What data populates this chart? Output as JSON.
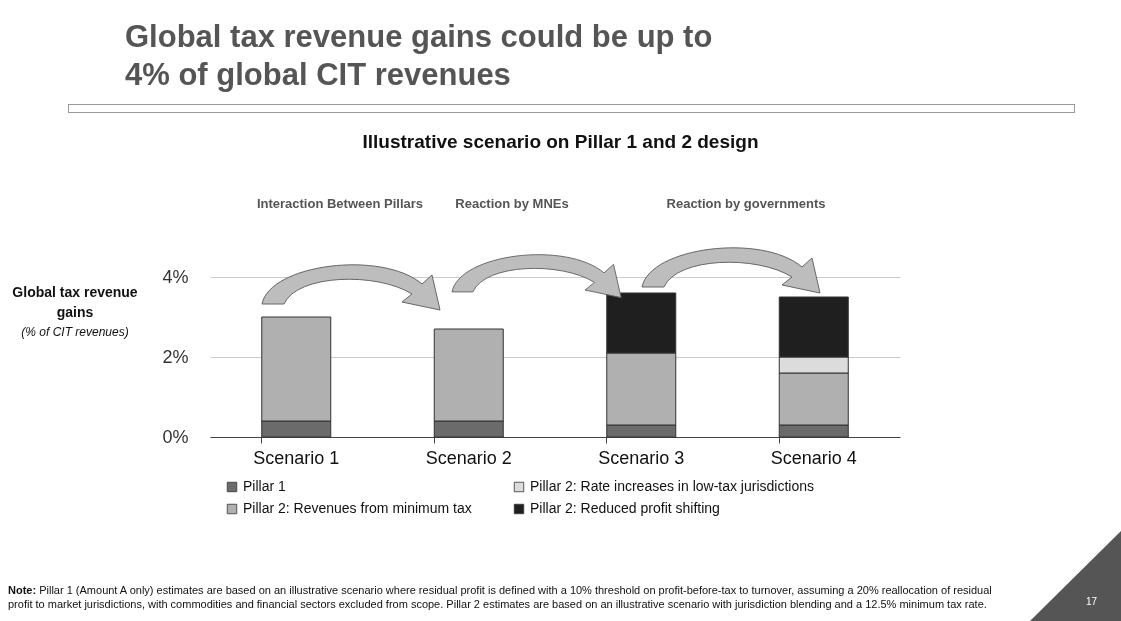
{
  "chart_data": {
    "type": "bar",
    "title": "Global tax revenue gains could be up to 4% of global CIT revenues",
    "subtitle": "Illustrative scenario on Pillar 1 and 2 design",
    "ylabel": "Global tax revenue gains (% of CIT revenues)",
    "categories": [
      "Scenario 1",
      "Scenario 2",
      "Scenario 3",
      "Scenario 4"
    ],
    "stacked": true,
    "series": [
      {
        "name": "Pillar 1",
        "color": "#6b6b6b",
        "values": [
          0.4,
          0.4,
          0.3,
          0.3
        ]
      },
      {
        "name": "Pillar 2: Revenues from minimum tax",
        "color": "#b0b0b0",
        "values": [
          2.6,
          2.3,
          1.8,
          1.3
        ]
      },
      {
        "name": "Pillar 2: Rate increases in low-tax jurisdictions",
        "color": "#dcdcdc",
        "values": [
          null,
          null,
          null,
          0.4
        ]
      },
      {
        "name": "Pillar 2: Reduced profit shifting",
        "color": "#1f1f1f",
        "values": [
          null,
          null,
          1.5,
          1.5
        ]
      }
    ],
    "ylim": [
      0,
      4
    ],
    "yticks": [
      {
        "value": 0,
        "label": "0%"
      },
      {
        "value": 2,
        "label": "2%"
      },
      {
        "value": 4,
        "label": "4%"
      }
    ],
    "grid": "y",
    "legend": "bottom",
    "annotations": [
      "Interaction Between Pillars",
      "Reaction by MNEs",
      "Reaction by governments",
      "Note: Pillar 1 (Amount A only) estimates are based on an illustrative scenario where residual profit is defined with a 10% threshold on profit-before-tax to turnover, assuming a 20% reallocation of residual profit to market jurisdictions, with commodities and financial sectors excluded from scope. Pillar 2 estimates are based on an illustrative scenario with jurisdiction blending and a 12.5% minimum tax rate.",
      "17"
    ]
  }
}
